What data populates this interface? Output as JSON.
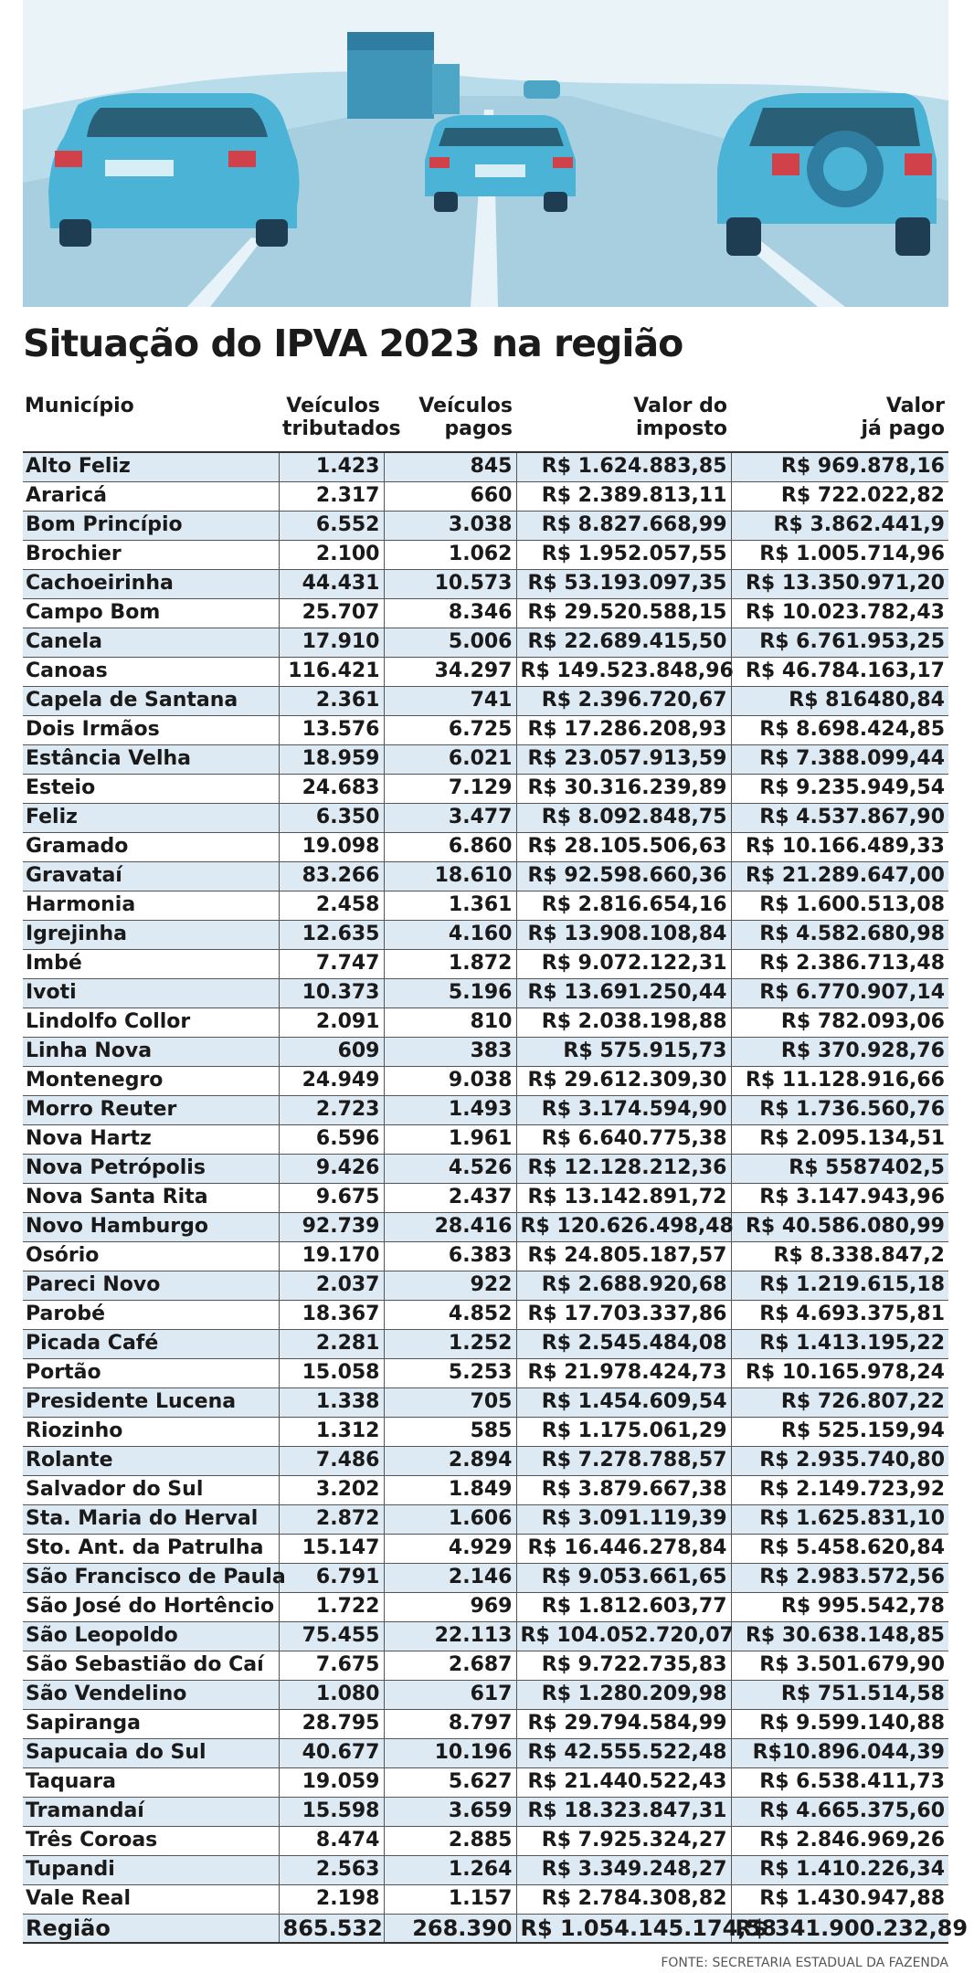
{
  "header": {
    "title": "Situação do IPVA 2023 na região"
  },
  "table": {
    "columns": [
      "Município",
      "Veículos\ntributados",
      "Veículos\npagos",
      "Valor do\nimposto",
      "Valor\njá pago"
    ],
    "rows": [
      [
        "Alto Feliz",
        "1.423",
        "845",
        "R$ 1.624.883,85",
        "R$ 969.878,16"
      ],
      [
        "Araricá",
        "2.317",
        "660",
        "R$ 2.389.813,11",
        "R$ 722.022,82"
      ],
      [
        "Bom Princípio",
        "6.552",
        "3.038",
        "R$ 8.827.668,99",
        "R$ 3.862.441,9"
      ],
      [
        "Brochier",
        "2.100",
        "1.062",
        "R$ 1.952.057,55",
        "R$ 1.005.714,96"
      ],
      [
        "Cachoeirinha",
        "44.431",
        "10.573",
        "R$ 53.193.097,35",
        "R$ 13.350.971,20"
      ],
      [
        "Campo Bom",
        "25.707",
        "8.346",
        "R$ 29.520.588,15",
        "R$ 10.023.782,43"
      ],
      [
        "Canela",
        "17.910",
        "5.006",
        "R$ 22.689.415,50",
        "R$ 6.761.953,25"
      ],
      [
        "Canoas",
        "116.421",
        "34.297",
        "R$ 149.523.848,96",
        "R$ 46.784.163,17"
      ],
      [
        "Capela de Santana",
        "2.361",
        "741",
        "R$ 2.396.720,67",
        "R$ 816480,84"
      ],
      [
        "Dois Irmãos",
        "13.576",
        "6.725",
        "R$ 17.286.208,93",
        "R$ 8.698.424,85"
      ],
      [
        "Estância Velha",
        "18.959",
        "6.021",
        "R$ 23.057.913,59",
        "R$ 7.388.099,44"
      ],
      [
        "Esteio",
        "24.683",
        "7.129",
        "R$ 30.316.239,89",
        "R$ 9.235.949,54"
      ],
      [
        "Feliz",
        "6.350",
        "3.477",
        "R$ 8.092.848,75",
        "R$ 4.537.867,90"
      ],
      [
        "Gramado",
        "19.098",
        "6.860",
        "R$ 28.105.506,63",
        "R$ 10.166.489,33"
      ],
      [
        "Gravataí",
        "83.266",
        "18.610",
        "R$ 92.598.660,36",
        "R$ 21.289.647,00"
      ],
      [
        "Harmonia",
        "2.458",
        "1.361",
        "R$ 2.816.654,16",
        "R$ 1.600.513,08"
      ],
      [
        "Igrejinha",
        "12.635",
        "4.160",
        "R$ 13.908.108,84",
        "R$ 4.582.680,98"
      ],
      [
        "Imbé",
        "7.747",
        "1.872",
        "R$ 9.072.122,31",
        "R$ 2.386.713,48"
      ],
      [
        "Ivoti",
        "10.373",
        "5.196",
        "R$ 13.691.250,44",
        "R$ 6.770.907,14"
      ],
      [
        "Lindolfo Collor",
        "2.091",
        "810",
        "R$ 2.038.198,88",
        "R$ 782.093,06"
      ],
      [
        "Linha Nova",
        "609",
        "383",
        "R$ 575.915,73",
        "R$ 370.928,76"
      ],
      [
        "Montenegro",
        "24.949",
        "9.038",
        "R$ 29.612.309,30",
        "R$ 11.128.916,66"
      ],
      [
        "Morro Reuter",
        "2.723",
        "1.493",
        "R$ 3.174.594,90",
        "R$ 1.736.560,76"
      ],
      [
        "Nova Hartz",
        "6.596",
        "1.961",
        "R$ 6.640.775,38",
        "R$ 2.095.134,51"
      ],
      [
        "Nova Petrópolis",
        "9.426",
        "4.526",
        "R$ 12.128.212,36",
        "R$ 5587402,5"
      ],
      [
        "Nova Santa Rita",
        "9.675",
        "2.437",
        "R$ 13.142.891,72",
        "R$ 3.147.943,96"
      ],
      [
        "Novo Hamburgo",
        "92.739",
        "28.416",
        "R$ 120.626.498,48",
        "R$ 40.586.080,99"
      ],
      [
        "Osório",
        "19.170",
        "6.383",
        "R$ 24.805.187,57",
        "R$ 8.338.847,2"
      ],
      [
        "Pareci Novo",
        "2.037",
        "922",
        "R$ 2.688.920,68",
        "R$ 1.219.615,18"
      ],
      [
        "Parobé",
        "18.367",
        "4.852",
        "R$ 17.703.337,86",
        "R$ 4.693.375,81"
      ],
      [
        "Picada Café",
        "2.281",
        "1.252",
        "R$ 2.545.484,08",
        "R$ 1.413.195,22"
      ],
      [
        "Portão",
        "15.058",
        "5.253",
        "R$ 21.978.424,73",
        "R$ 10.165.978,24"
      ],
      [
        "Presidente Lucena",
        "1.338",
        "705",
        "R$ 1.454.609,54",
        "R$ 726.807,22"
      ],
      [
        "Riozinho",
        "1.312",
        "585",
        "R$ 1.175.061,29",
        "R$ 525.159,94"
      ],
      [
        "Rolante",
        "7.486",
        "2.894",
        "R$ 7.278.788,57",
        "R$ 2.935.740,80"
      ],
      [
        "Salvador do Sul",
        "3.202",
        "1.849",
        "R$ 3.879.667,38",
        "R$ 2.149.723,92"
      ],
      [
        "Sta. Maria do Herval",
        "2.872",
        "1.606",
        "R$ 3.091.119,39",
        "R$ 1.625.831,10"
      ],
      [
        "Sto. Ant. da Patrulha",
        "15.147",
        "4.929",
        "R$ 16.446.278,84",
        "R$ 5.458.620,84"
      ],
      [
        "São Francisco de Paula",
        "6.791",
        "2.146",
        "R$ 9.053.661,65",
        "R$ 2.983.572,56"
      ],
      [
        "São José do Hortêncio",
        "1.722",
        "969",
        "R$ 1.812.603,77",
        "R$ 995.542,78"
      ],
      [
        "São Leopoldo",
        "75.455",
        "22.113",
        "R$ 104.052.720,07",
        "R$ 30.638.148,85"
      ],
      [
        "São Sebastião do Caí",
        "7.675",
        "2.687",
        "R$ 9.722.735,83",
        "R$ 3.501.679,90"
      ],
      [
        "São  Vendelino",
        "1.080",
        "617",
        "R$ 1.280.209,98",
        "R$ 751.514,58"
      ],
      [
        "Sapiranga",
        "28.795",
        "8.797",
        "R$ 29.794.584,99",
        "R$ 9.599.140,88"
      ],
      [
        "Sapucaia do Sul",
        "40.677",
        "10.196",
        "R$ 42.555.522,48",
        "R$10.896.044,39"
      ],
      [
        "Taquara",
        "19.059",
        "5.627",
        "R$ 21.440.522,43",
        "R$ 6.538.411,73"
      ],
      [
        "Tramandaí",
        "15.598",
        "3.659",
        "R$ 18.323.847,31",
        "R$ 4.665.375,60"
      ],
      [
        "Três Coroas",
        "8.474",
        "2.885",
        "R$ 7.925.324,27",
        "R$ 2.846.969,26"
      ],
      [
        "Tupandi",
        "2.563",
        "1.264",
        "R$ 3.349.248,27",
        "R$ 1.410.226,34"
      ],
      [
        "Vale Real",
        "2.198",
        "1.157",
        "R$ 2.784.308,82",
        "R$ 1.430.947,88"
      ]
    ],
    "total": [
      "Região",
      "865.532",
      "268.390",
      "R$ 1.054.145.174,58",
      "R$ 341.900.232,89"
    ]
  },
  "footer": {
    "source": "FONTE: SECRETARIA ESTADUAL DA FAZENDA"
  }
}
